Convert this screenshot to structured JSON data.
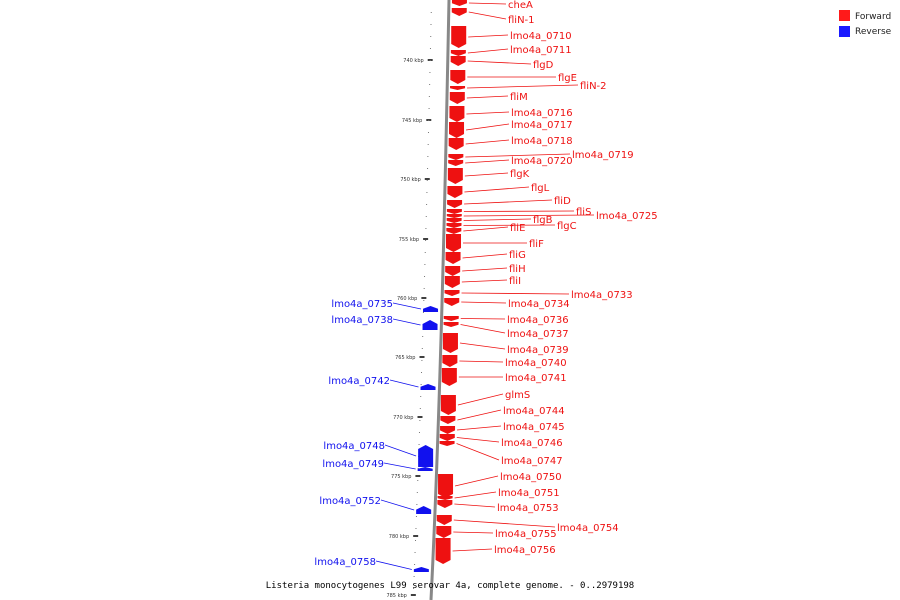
{
  "caption": "Listeria monocytogenes L99 serovar 4a, complete genome. - 0..2979198",
  "legend": [
    {
      "label": "Forward",
      "color": "#ff1a1a"
    },
    {
      "label": "Reverse",
      "color": "#1a1aff"
    }
  ],
  "colors": {
    "forward": "#ee1111",
    "reverse": "#1111ee",
    "axis": "#888888"
  },
  "ticks": [
    "740 kbp",
    "745 kbp",
    "750 kbp",
    "755 kbp",
    "760 kbp",
    "765 kbp",
    "770 kbp",
    "775 kbp",
    "780 kbp",
    "785 kbp"
  ],
  "forward_genes": [
    "cheA",
    "fliN-1",
    "lmo4a_0710",
    "lmo4a_0711",
    "flgD",
    "flgE",
    "fliN-2",
    "fliM",
    "lmo4a_0716",
    "lmo4a_0717",
    "lmo4a_0718",
    "lmo4a_0719",
    "lmo4a_0720",
    "flgK",
    "flgL",
    "fliD",
    "fliS",
    "lmo4a_0725",
    "flgB",
    "flgC",
    "fliE",
    "fliF",
    "fliG",
    "fliH",
    "fliI",
    "lmo4a_0733",
    "lmo4a_0734",
    "lmo4a_0736",
    "lmo4a_0737",
    "lmo4a_0739",
    "lmo4a_0740",
    "lmo4a_0741",
    "glmS",
    "lmo4a_0744",
    "lmo4a_0745",
    "lmo4a_0746",
    "lmo4a_0747",
    "lmo4a_0750",
    "lmo4a_0751",
    "lmo4a_0753",
    "lmo4a_0754",
    "lmo4a_0755",
    "lmo4a_0756"
  ],
  "reverse_genes": [
    "lmo4a_0735",
    "lmo4a_0738",
    "lmo4a_0742",
    "lmo4a_0748",
    "lmo4a_0749",
    "lmo4a_0752",
    "lmo4a_0758"
  ]
}
